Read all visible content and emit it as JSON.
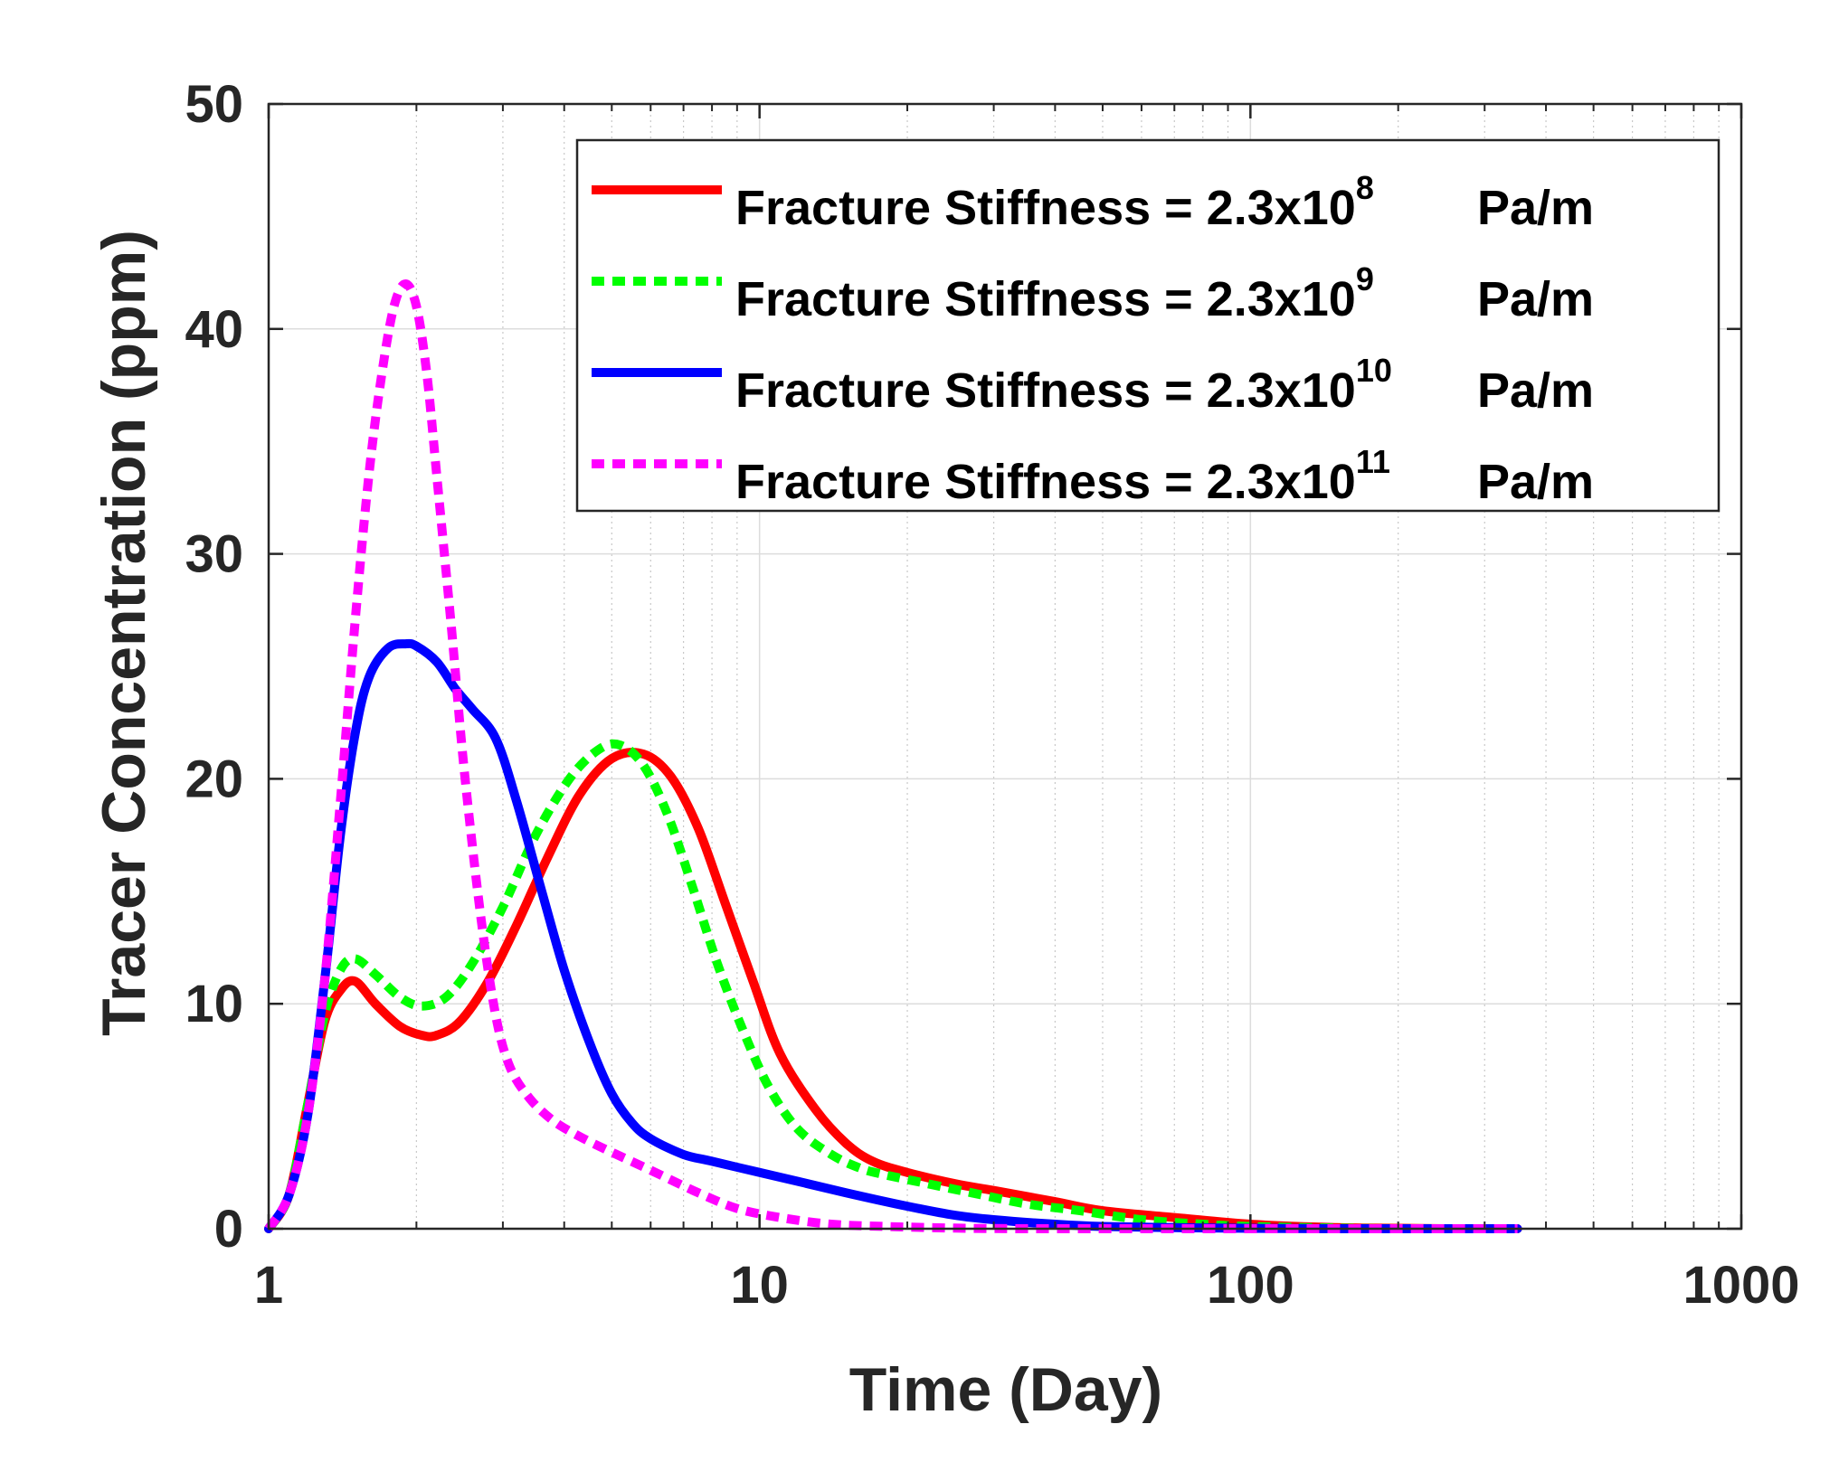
{
  "chart_data": {
    "type": "line",
    "title": "",
    "xlabel": "Time (Day)",
    "ylabel": "Tracer Concentration (ppm)",
    "xscale": "log",
    "xlim": [
      1,
      1000
    ],
    "ylim": [
      0,
      50
    ],
    "grid": true,
    "legend_position": "top-right",
    "x_ticks": [
      1,
      10,
      100,
      1000
    ],
    "x_tick_labels": [
      "1",
      "10",
      "100",
      "1000"
    ],
    "y_ticks": [
      0,
      10,
      20,
      30,
      40,
      50
    ],
    "y_tick_labels": [
      "0",
      "10",
      "20",
      "30",
      "40",
      "50"
    ],
    "series": [
      {
        "name": "Fracture Stiffness = 2.3x10^8 Pa/m",
        "label_main": "Fracture Stiffness = 2.3x10",
        "label_exp": "8",
        "label_unit": "Pa/m",
        "color": "#ff0000",
        "style": "solid",
        "x": [
          1,
          1.1,
          1.2,
          1.3,
          1.4,
          1.5,
          1.65,
          1.85,
          2.05,
          2.2,
          2.45,
          2.8,
          3.2,
          3.7,
          4.3,
          5.0,
          5.8,
          6.6,
          7.5,
          8.5,
          9.7,
          11,
          13,
          15,
          17,
          20,
          25,
          30,
          40,
          50,
          70,
          100,
          150,
          200,
          250,
          350
        ],
        "y": [
          0,
          1.5,
          5.5,
          9.2,
          10.6,
          11.0,
          10.0,
          9.0,
          8.6,
          8.6,
          9.2,
          11.0,
          13.5,
          16.5,
          19.3,
          20.9,
          21.1,
          20.1,
          17.8,
          14.5,
          11.0,
          7.8,
          5.3,
          3.8,
          3.0,
          2.5,
          2.0,
          1.7,
          1.2,
          0.8,
          0.5,
          0.2,
          0.05,
          0.02,
          0,
          0
        ]
      },
      {
        "name": "Fracture Stiffness = 2.3x10^9 Pa/m",
        "label_main": "Fracture Stiffness = 2.3x10",
        "label_exp": "9",
        "label_unit": "Pa/m",
        "color": "#00ff00",
        "style": "dashed",
        "x": [
          1,
          1.1,
          1.2,
          1.3,
          1.4,
          1.5,
          1.65,
          1.85,
          2.05,
          2.3,
          2.6,
          3.0,
          3.5,
          4.1,
          4.7,
          5.2,
          5.8,
          6.5,
          7.3,
          8.2,
          9.3,
          10.5,
          12,
          14,
          16,
          18,
          22,
          27,
          35,
          45,
          60,
          80,
          100,
          150,
          200,
          350
        ],
        "y": [
          0,
          1.5,
          5.5,
          9.5,
          11.5,
          12.0,
          11.3,
          10.3,
          9.9,
          10.3,
          11.8,
          14.3,
          17.5,
          20.0,
          21.3,
          21.5,
          20.6,
          18.4,
          15.2,
          11.8,
          8.7,
          6.2,
          4.4,
          3.3,
          2.7,
          2.4,
          2.0,
          1.6,
          1.1,
          0.8,
          0.4,
          0.2,
          0.1,
          0.03,
          0,
          0
        ]
      },
      {
        "name": "Fracture Stiffness = 2.3x10^10 Pa/m",
        "label_main": "Fracture Stiffness = 2.3x10",
        "label_exp": "10",
        "label_unit": "Pa/m",
        "color": "#0000ff",
        "style": "solid",
        "x": [
          1,
          1.1,
          1.2,
          1.3,
          1.4,
          1.5,
          1.6,
          1.75,
          1.9,
          2.0,
          2.2,
          2.4,
          2.6,
          2.9,
          3.2,
          3.6,
          4.0,
          4.5,
          5.0,
          5.5,
          6.0,
          7.0,
          8.0,
          10,
          12,
          15,
          20,
          25,
          30,
          40,
          50,
          70,
          100,
          150,
          200,
          350
        ],
        "y": [
          0,
          1.5,
          5.0,
          11.0,
          17.5,
          22.0,
          24.5,
          25.8,
          26.0,
          25.9,
          25.2,
          24.0,
          23.1,
          21.8,
          19.0,
          15.0,
          11.5,
          8.3,
          6.0,
          4.7,
          4.0,
          3.3,
          3.0,
          2.5,
          2.1,
          1.6,
          1.0,
          0.6,
          0.4,
          0.2,
          0.1,
          0.05,
          0.02,
          0,
          0,
          0
        ]
      },
      {
        "name": "Fracture Stiffness = 2.3x10^11 Pa/m",
        "label_main": "Fracture Stiffness = 2.3x10",
        "label_exp": "11",
        "label_unit": "Pa/m",
        "color": "#ff00ff",
        "style": "dashed",
        "x": [
          1,
          1.1,
          1.2,
          1.3,
          1.4,
          1.5,
          1.6,
          1.7,
          1.8,
          1.9,
          2.0,
          2.1,
          2.2,
          2.35,
          2.5,
          2.7,
          2.9,
          3.1,
          3.4,
          3.8,
          4.3,
          5.0,
          6.0,
          7.5,
          9.0,
          11,
          14,
          18,
          25,
          35,
          50,
          70,
          100,
          150,
          250,
          350
        ],
        "y": [
          0,
          1.5,
          5.0,
          11.0,
          19.0,
          27.0,
          33.5,
          38.0,
          41.0,
          42.0,
          41.0,
          38.0,
          33.5,
          27.0,
          20.5,
          14.0,
          9.5,
          7.2,
          5.8,
          4.8,
          4.1,
          3.4,
          2.6,
          1.6,
          0.9,
          0.5,
          0.2,
          0.1,
          0.03,
          0,
          0,
          0,
          0,
          0,
          0,
          0
        ]
      }
    ]
  }
}
